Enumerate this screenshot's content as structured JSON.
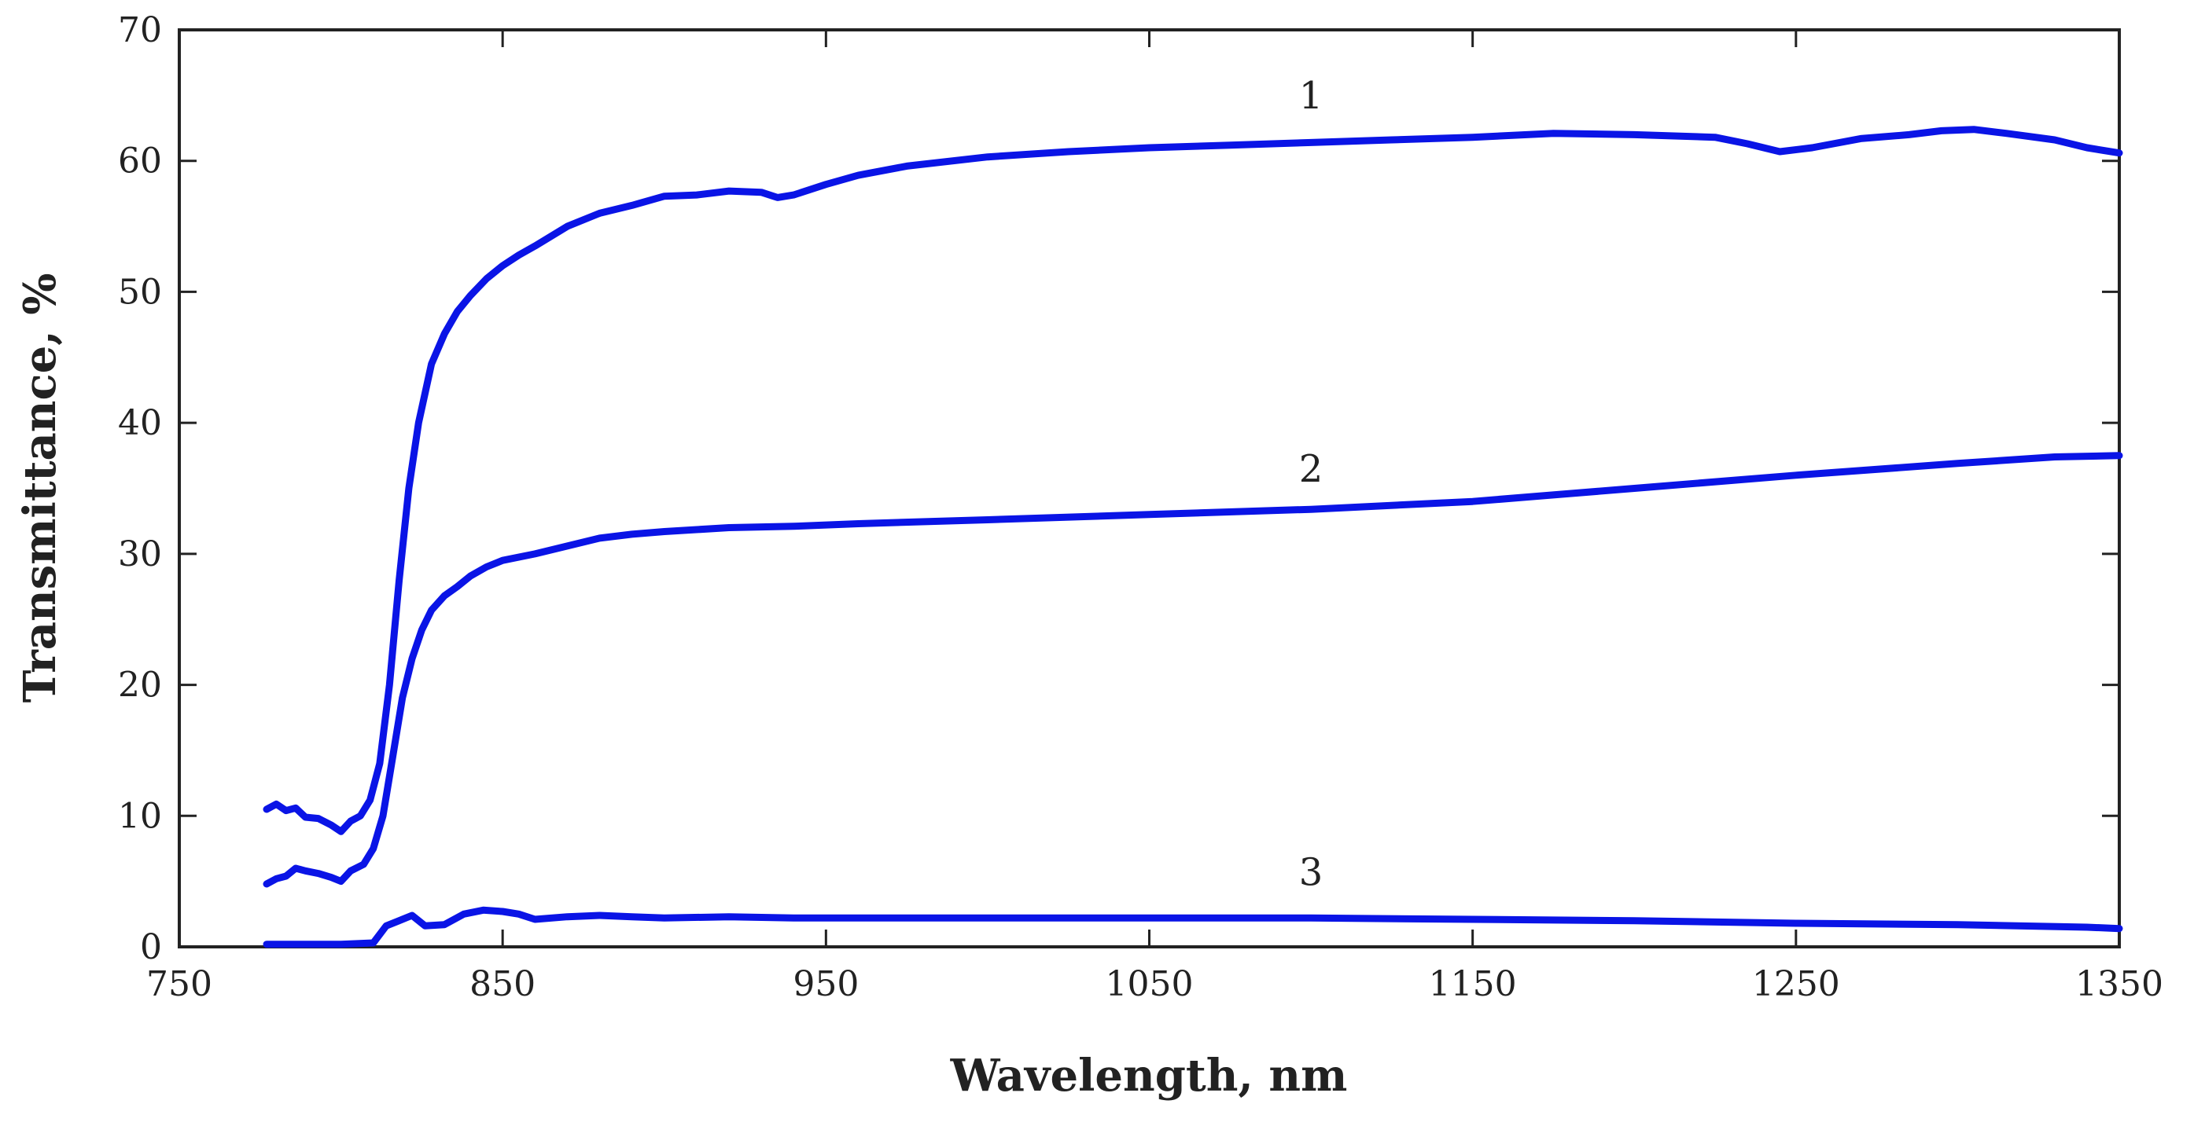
{
  "chart_data": {
    "type": "line",
    "title": "",
    "xlabel": "Wavelength, nm",
    "ylabel": "Transmittance, %",
    "xlim": [
      750,
      1350
    ],
    "ylim": [
      0,
      70
    ],
    "xticks": [
      750,
      850,
      950,
      1050,
      1150,
      1250,
      1350
    ],
    "yticks": [
      0,
      10,
      20,
      30,
      40,
      50,
      60,
      70
    ],
    "xtick_labels": [
      "750",
      "850",
      "950",
      "1050",
      "1150",
      "1250",
      "1350"
    ],
    "ytick_labels": [
      "0",
      "10",
      "20",
      "30",
      "40",
      "50",
      "60",
      "70"
    ],
    "grid": false,
    "line_color": "#0a14e6",
    "series": [
      {
        "name": "1",
        "label_at": [
          1100,
          64
        ],
        "points": [
          [
            777,
            10.5
          ],
          [
            780,
            10.9
          ],
          [
            783,
            10.4
          ],
          [
            786,
            10.6
          ],
          [
            789,
            9.9
          ],
          [
            793,
            9.8
          ],
          [
            797,
            9.3
          ],
          [
            800,
            8.8
          ],
          [
            803,
            9.6
          ],
          [
            806,
            10.0
          ],
          [
            809,
            11.2
          ],
          [
            812,
            14.0
          ],
          [
            815,
            20.0
          ],
          [
            818,
            28.0
          ],
          [
            821,
            35.0
          ],
          [
            824,
            40.0
          ],
          [
            828,
            44.5
          ],
          [
            832,
            46.8
          ],
          [
            836,
            48.5
          ],
          [
            840,
            49.7
          ],
          [
            845,
            51.0
          ],
          [
            850,
            52.0
          ],
          [
            855,
            52.8
          ],
          [
            860,
            53.5
          ],
          [
            870,
            55.0
          ],
          [
            880,
            56.0
          ],
          [
            890,
            56.6
          ],
          [
            900,
            57.3
          ],
          [
            910,
            57.4
          ],
          [
            920,
            57.7
          ],
          [
            930,
            57.6
          ],
          [
            935,
            57.2
          ],
          [
            940,
            57.4
          ],
          [
            950,
            58.2
          ],
          [
            960,
            58.9
          ],
          [
            975,
            59.6
          ],
          [
            1000,
            60.3
          ],
          [
            1025,
            60.7
          ],
          [
            1050,
            61.0
          ],
          [
            1075,
            61.2
          ],
          [
            1100,
            61.4
          ],
          [
            1125,
            61.6
          ],
          [
            1150,
            61.8
          ],
          [
            1175,
            62.1
          ],
          [
            1200,
            62.0
          ],
          [
            1225,
            61.8
          ],
          [
            1235,
            61.3
          ],
          [
            1245,
            60.7
          ],
          [
            1255,
            61.0
          ],
          [
            1270,
            61.7
          ],
          [
            1285,
            62.0
          ],
          [
            1295,
            62.3
          ],
          [
            1305,
            62.4
          ],
          [
            1315,
            62.1
          ],
          [
            1330,
            61.6
          ],
          [
            1340,
            61.0
          ],
          [
            1350,
            60.6
          ]
        ]
      },
      {
        "name": "2",
        "label_at": [
          1100,
          35.5
        ],
        "points": [
          [
            777,
            4.8
          ],
          [
            780,
            5.2
          ],
          [
            783,
            5.4
          ],
          [
            786,
            6.0
          ],
          [
            789,
            5.8
          ],
          [
            793,
            5.6
          ],
          [
            797,
            5.3
          ],
          [
            800,
            5.0
          ],
          [
            803,
            5.8
          ],
          [
            807,
            6.3
          ],
          [
            810,
            7.5
          ],
          [
            813,
            10.0
          ],
          [
            816,
            14.5
          ],
          [
            819,
            19.0
          ],
          [
            822,
            22.0
          ],
          [
            825,
            24.2
          ],
          [
            828,
            25.7
          ],
          [
            832,
            26.8
          ],
          [
            836,
            27.5
          ],
          [
            840,
            28.3
          ],
          [
            845,
            29.0
          ],
          [
            850,
            29.5
          ],
          [
            860,
            30.0
          ],
          [
            870,
            30.6
          ],
          [
            880,
            31.2
          ],
          [
            890,
            31.5
          ],
          [
            900,
            31.7
          ],
          [
            920,
            32.0
          ],
          [
            940,
            32.1
          ],
          [
            960,
            32.3
          ],
          [
            1000,
            32.6
          ],
          [
            1050,
            33.0
          ],
          [
            1100,
            33.4
          ],
          [
            1150,
            34.0
          ],
          [
            1200,
            35.0
          ],
          [
            1250,
            36.0
          ],
          [
            1300,
            36.9
          ],
          [
            1330,
            37.4
          ],
          [
            1350,
            37.5
          ]
        ]
      },
      {
        "name": "3",
        "label_at": [
          1100,
          4.7
        ],
        "points": [
          [
            777,
            0.2
          ],
          [
            790,
            0.2
          ],
          [
            800,
            0.2
          ],
          [
            810,
            0.3
          ],
          [
            814,
            1.6
          ],
          [
            818,
            2.0
          ],
          [
            822,
            2.4
          ],
          [
            826,
            1.6
          ],
          [
            832,
            1.7
          ],
          [
            838,
            2.5
          ],
          [
            844,
            2.8
          ],
          [
            850,
            2.7
          ],
          [
            855,
            2.5
          ],
          [
            860,
            2.1
          ],
          [
            870,
            2.3
          ],
          [
            880,
            2.4
          ],
          [
            890,
            2.3
          ],
          [
            900,
            2.2
          ],
          [
            920,
            2.3
          ],
          [
            940,
            2.2
          ],
          [
            960,
            2.2
          ],
          [
            1000,
            2.2
          ],
          [
            1050,
            2.2
          ],
          [
            1100,
            2.2
          ],
          [
            1150,
            2.1
          ],
          [
            1200,
            2.0
          ],
          [
            1250,
            1.8
          ],
          [
            1300,
            1.7
          ],
          [
            1340,
            1.5
          ],
          [
            1350,
            1.4
          ]
        ]
      }
    ]
  }
}
